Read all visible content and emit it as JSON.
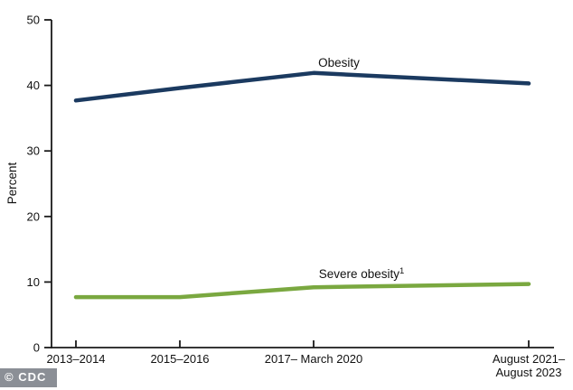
{
  "page": {
    "background": "#ffffff"
  },
  "chart_data": {
    "type": "line",
    "title": "",
    "ylabel": "Percent",
    "xlabel": "",
    "ylim": [
      0,
      50
    ],
    "yticks": [
      0,
      10,
      20,
      30,
      40,
      50
    ],
    "grid": false,
    "legend_position": "inline-annotations",
    "axis_color": "#1a1a1a",
    "text_color": "#111111",
    "categories": [
      "2013–2014",
      "2015–2016",
      "2017– March 2020",
      "August 2021–\nAugust 2023"
    ],
    "series": [
      {
        "name": "Obesity",
        "annotation": "Obesity",
        "annotation_superscript": "",
        "values": [
          37.7,
          39.6,
          41.9,
          40.3
        ],
        "color": "#1b3a60"
      },
      {
        "name": "Severe obesity",
        "annotation": "Severe obesity",
        "annotation_superscript": "1",
        "values": [
          7.7,
          7.7,
          9.2,
          9.7
        ],
        "color": "#7aa840"
      }
    ]
  },
  "footer": {
    "cdc_label": "© CDC",
    "badge_bg": "#8b8f96",
    "badge_text_color": "#ffffff"
  }
}
